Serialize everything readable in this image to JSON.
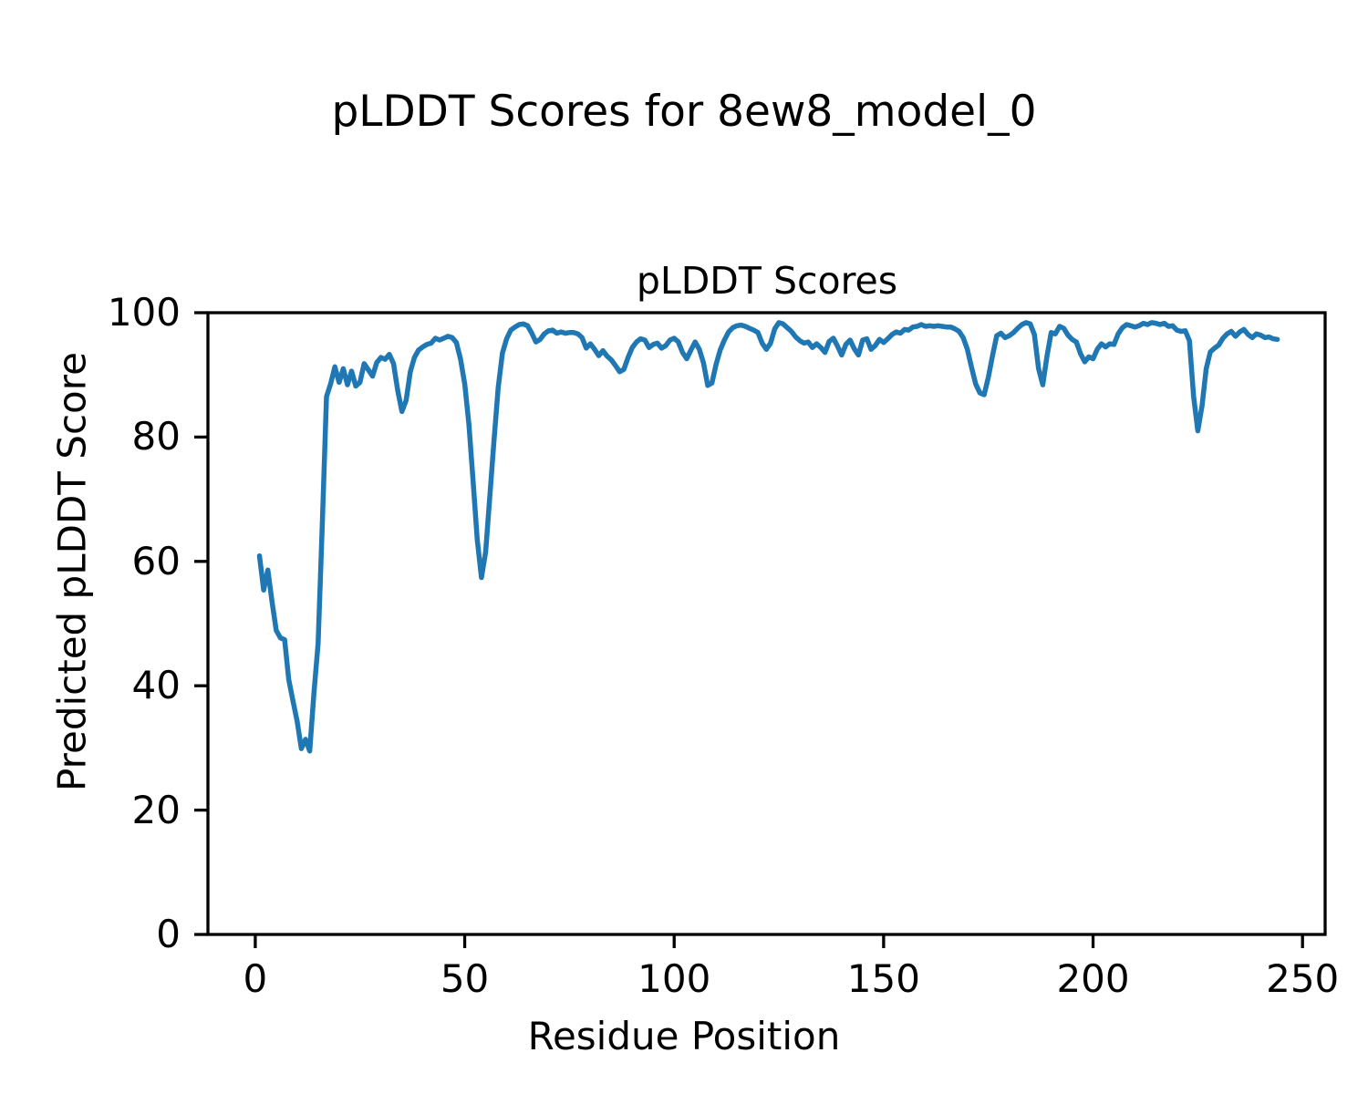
{
  "figure": {
    "suptitle": "pLDDT Scores for 8ew8_model_0",
    "background": "#ffffff",
    "text_color": "#000000"
  },
  "chart_data": {
    "type": "line",
    "title": "pLDDT Scores",
    "xlabel": "Residue Position",
    "ylabel": "Predicted pLDDT Score",
    "line_color": "#1f77b4",
    "grid": false,
    "legend": "none",
    "xlim": [
      -11.3,
      255.4
    ],
    "ylim": [
      0,
      100
    ],
    "xticks": [
      0,
      50,
      100,
      150,
      200,
      250
    ],
    "yticks": [
      0,
      20,
      40,
      60,
      80,
      100
    ],
    "x_start_residue": 1,
    "values": [
      60.9,
      55.4,
      58.6,
      53.5,
      48.9,
      47.7,
      47.4,
      41.0,
      37.6,
      34.3,
      29.9,
      31.4,
      29.5,
      38.8,
      46.8,
      66.0,
      86.5,
      88.6,
      91.3,
      88.8,
      91.0,
      88.4,
      90.6,
      88.2,
      88.8,
      91.8,
      90.8,
      89.8,
      92.0,
      92.8,
      92.5,
      93.3,
      91.8,
      87.5,
      84.1,
      85.9,
      90.5,
      92.8,
      94.0,
      94.5,
      94.9,
      95.1,
      95.9,
      95.6,
      95.9,
      96.2,
      96.0,
      95.2,
      92.5,
      88.5,
      82.0,
      73.0,
      63.5,
      57.4,
      61.5,
      70.5,
      79.5,
      88.0,
      93.5,
      95.8,
      97.2,
      97.7,
      98.1,
      98.2,
      97.9,
      96.7,
      95.3,
      95.7,
      96.6,
      97.1,
      97.2,
      96.7,
      96.9,
      96.7,
      96.8,
      96.8,
      96.6,
      96.0,
      94.3,
      95.0,
      94.1,
      93.1,
      93.9,
      93.0,
      92.4,
      91.5,
      90.5,
      90.9,
      92.8,
      94.4,
      95.3,
      95.8,
      95.6,
      94.4,
      94.9,
      95.1,
      94.3,
      94.7,
      95.6,
      95.9,
      95.3,
      93.6,
      92.6,
      94.0,
      95.3,
      94.1,
      91.9,
      88.3,
      88.7,
      91.7,
      94.0,
      95.6,
      96.9,
      97.6,
      97.9,
      98.0,
      97.8,
      97.5,
      97.2,
      96.8,
      95.1,
      94.1,
      95.1,
      97.4,
      98.4,
      98.2,
      97.6,
      97.0,
      96.1,
      95.5,
      95.1,
      95.3,
      94.4,
      95.0,
      94.4,
      93.6,
      95.4,
      95.9,
      94.6,
      93.2,
      94.9,
      95.6,
      94.2,
      93.2,
      95.6,
      95.8,
      94.1,
      94.7,
      95.7,
      95.2,
      95.8,
      96.5,
      96.9,
      96.7,
      97.3,
      97.2,
      97.7,
      97.8,
      98.1,
      97.8,
      97.9,
      97.8,
      97.9,
      97.8,
      97.7,
      97.7,
      97.4,
      97.0,
      96.0,
      94.1,
      91.2,
      88.5,
      87.1,
      86.8,
      89.6,
      93.1,
      96.3,
      96.7,
      96.0,
      96.3,
      96.8,
      97.5,
      98.1,
      98.4,
      98.2,
      96.5,
      91.0,
      88.4,
      93.0,
      96.8,
      96.6,
      97.8,
      97.5,
      96.4,
      95.7,
      95.3,
      93.4,
      92.1,
      92.9,
      92.6,
      94.1,
      95.0,
      94.5,
      95.0,
      94.9,
      96.6,
      97.6,
      98.1,
      97.9,
      97.7,
      97.9,
      98.3,
      98.1,
      98.4,
      98.3,
      98.1,
      98.3,
      97.8,
      97.9,
      97.2,
      97.0,
      97.1,
      95.5,
      86.5,
      81.0,
      85.0,
      91.0,
      93.7,
      94.3,
      94.8,
      95.9,
      96.6,
      97.0,
      96.2,
      96.9,
      97.3,
      96.5,
      96.0,
      96.6,
      96.4,
      96.0,
      96.1,
      95.8,
      95.7
    ]
  }
}
